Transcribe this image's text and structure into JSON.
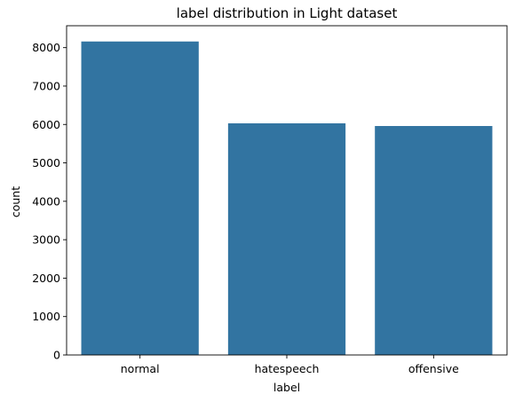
{
  "chart_data": {
    "type": "bar",
    "title": "label distribution in Light dataset",
    "xlabel": "label",
    "ylabel": "count",
    "categories": [
      "normal",
      "hatespeech",
      "offensive"
    ],
    "values": [
      8160,
      6030,
      5960
    ],
    "ylim": [
      0,
      8570
    ],
    "yticks": [
      0,
      1000,
      2000,
      3000,
      4000,
      5000,
      6000,
      7000,
      8000
    ],
    "bar_color": "#3274a1",
    "grid": false,
    "legend": "none"
  }
}
